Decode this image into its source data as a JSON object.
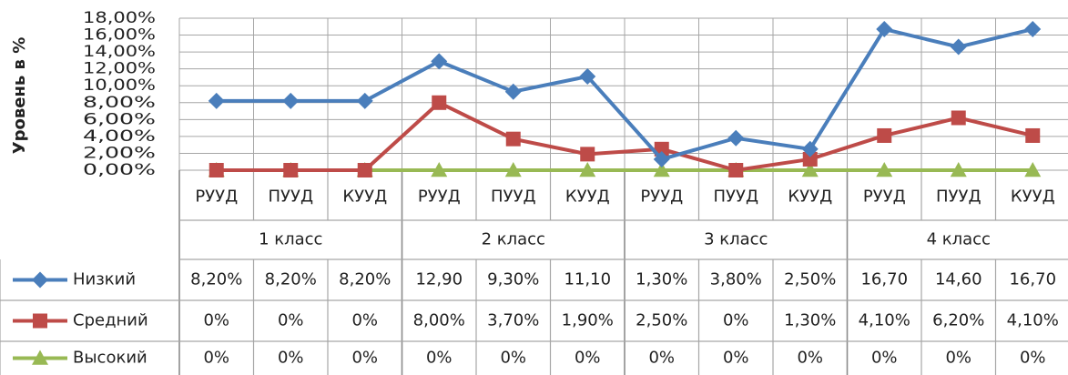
{
  "chart_data": {
    "type": "line",
    "y_label": "Уровень в %",
    "categories": [
      "РУУД",
      "ПУУД",
      "КУУД",
      "РУУД",
      "ПУУД",
      "КУУД",
      "РУУД",
      "ПУУД",
      "КУУД",
      "РУУД",
      "ПУУД",
      "КУУД"
    ],
    "groups": [
      "1 класс",
      "2 класс",
      "3 класс",
      "4 класс"
    ],
    "ylim": [
      0,
      18
    ],
    "yticks": [
      {
        "value": 0,
        "label": "0,00%"
      },
      {
        "value": 2,
        "label": "2,00%"
      },
      {
        "value": 4,
        "label": "4,00%"
      },
      {
        "value": 6,
        "label": "6,00%"
      },
      {
        "value": 8,
        "label": "8,00%"
      },
      {
        "value": 10,
        "label": "10,00%"
      },
      {
        "value": 12,
        "label": "12,00%"
      },
      {
        "value": 14,
        "label": "14,00%"
      },
      {
        "value": 16,
        "label": "16,00%"
      },
      {
        "value": 18,
        "label": "18,00%"
      }
    ],
    "grid": true,
    "series": [
      {
        "name": "Низкий",
        "color": "#4a7ebb",
        "marker": "diamond",
        "values": [
          8.2,
          8.2,
          8.2,
          12.9,
          9.3,
          11.1,
          1.3,
          3.8,
          2.5,
          16.7,
          14.6,
          16.7
        ],
        "value_labels": [
          "8,20%",
          "8,20%",
          "8,20%",
          "12,90",
          "9,30%",
          "11,10",
          "1,30%",
          "3,80%",
          "2,50%",
          "16,70",
          "14,60",
          "16,70"
        ]
      },
      {
        "name": "Средний",
        "color": "#be4b48",
        "marker": "square",
        "values": [
          0,
          0,
          0,
          8,
          3.7,
          1.9,
          2.5,
          0,
          1.3,
          4.1,
          6.2,
          4.1
        ],
        "value_labels": [
          "0%",
          "0%",
          "0%",
          "8,00%",
          "3,70%",
          "1,90%",
          "2,50%",
          "0%",
          "1,30%",
          "4,10%",
          "6,20%",
          "4,10%"
        ]
      },
      {
        "name": "Высокий",
        "color": "#98b954",
        "marker": "triangle",
        "values": [
          0,
          0,
          0,
          0,
          0,
          0,
          0,
          0,
          0,
          0,
          0,
          0
        ],
        "value_labels": [
          "0%",
          "0%",
          "0%",
          "0%",
          "0%",
          "0%",
          "0%",
          "0%",
          "0%",
          "0%",
          "0%",
          "0%"
        ]
      }
    ]
  }
}
